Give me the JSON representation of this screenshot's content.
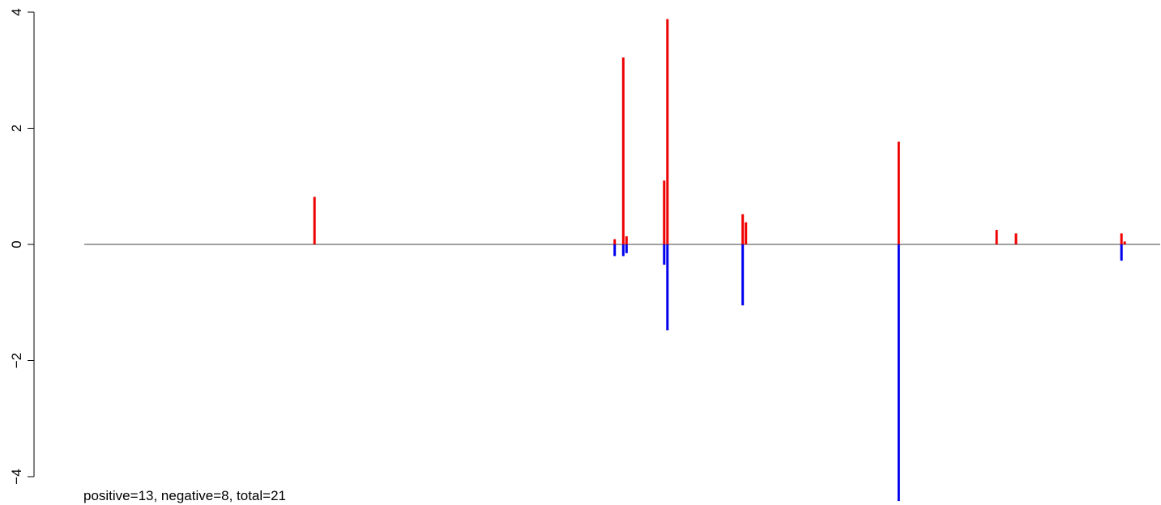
{
  "chart_data": {
    "type": "bar",
    "title": "",
    "xlabel": "",
    "ylabel": "",
    "ylim": [
      -4.4,
      4
    ],
    "yticks": [
      -4,
      -2,
      0,
      2,
      4
    ],
    "ytick_labels": [
      "−4",
      "−2",
      "0",
      "2",
      "4"
    ],
    "xlim": [
      0,
      1
    ],
    "grid": false,
    "colors": {
      "positive": "#ee0000",
      "negative": "#0000ee",
      "baseline": "#000000"
    },
    "series": [
      {
        "color": "#ee0000",
        "points": [
          {
            "x": 0.214,
            "y": 0.82
          },
          {
            "x": 0.493,
            "y": 0.09
          },
          {
            "x": 0.501,
            "y": 3.22
          },
          {
            "x": 0.504,
            "y": 0.14
          },
          {
            "x": 0.539,
            "y": 1.1
          },
          {
            "x": 0.542,
            "y": 3.88
          },
          {
            "x": 0.612,
            "y": 0.52
          },
          {
            "x": 0.615,
            "y": 0.38
          },
          {
            "x": 0.757,
            "y": 1.77
          },
          {
            "x": 0.848,
            "y": 0.25
          },
          {
            "x": 0.866,
            "y": 0.19
          },
          {
            "x": 0.964,
            "y": 0.19
          },
          {
            "x": 0.967,
            "y": 0.05
          }
        ]
      },
      {
        "color": "#0000ee",
        "points": [
          {
            "x": 0.493,
            "y": -0.2
          },
          {
            "x": 0.501,
            "y": -0.2
          },
          {
            "x": 0.504,
            "y": -0.15
          },
          {
            "x": 0.539,
            "y": -0.35
          },
          {
            "x": 0.542,
            "y": -1.48
          },
          {
            "x": 0.612,
            "y": -1.05
          },
          {
            "x": 0.757,
            "y": -4.42
          },
          {
            "x": 0.964,
            "y": -0.28
          }
        ]
      }
    ]
  },
  "footer_text": "positive=13, negative=8, total=21"
}
